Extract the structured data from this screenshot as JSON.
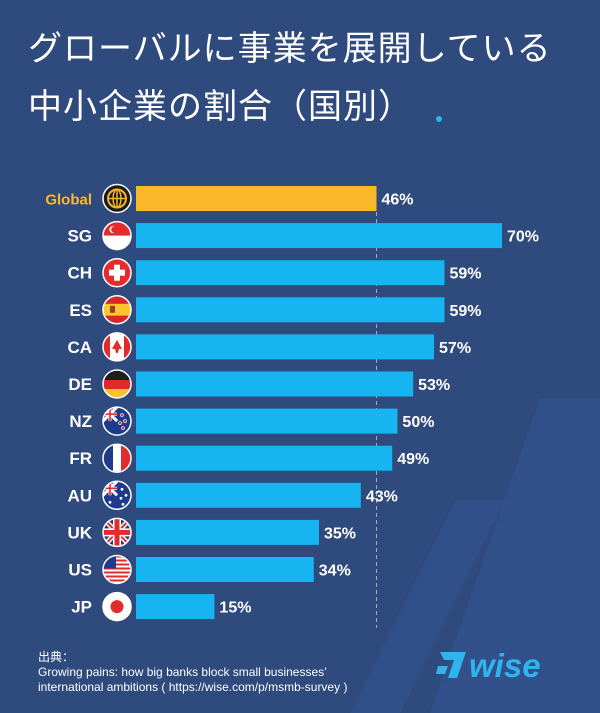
{
  "title_lines": [
    "グローバルに事業を展開している",
    "中小企業の割合（国別）"
  ],
  "chart_data": {
    "type": "bar",
    "orientation": "horizontal",
    "categories": [
      "Global",
      "SG",
      "CH",
      "ES",
      "CA",
      "DE",
      "NZ",
      "FR",
      "AU",
      "UK",
      "US",
      "JP"
    ],
    "values": [
      46,
      70,
      59,
      59,
      57,
      53,
      50,
      49,
      43,
      35,
      34,
      15
    ],
    "value_labels": [
      "46%",
      "70%",
      "59%",
      "59%",
      "57%",
      "53%",
      "50%",
      "49%",
      "43%",
      "35%",
      "34%",
      "15%"
    ],
    "xlim": [
      0,
      70
    ],
    "reference_line": 46,
    "colors": {
      "global": "#fbb929",
      "country": "#16b4f0"
    },
    "flags": [
      "globe-icon",
      "singapore-flag-icon",
      "switzerland-flag-icon",
      "spain-flag-icon",
      "canada-flag-icon",
      "germany-flag-icon",
      "new-zealand-flag-icon",
      "france-flag-icon",
      "australia-flag-icon",
      "uk-flag-icon",
      "us-flag-icon",
      "japan-flag-icon"
    ]
  },
  "source": {
    "label": "出典：",
    "line1": "Growing pains: how big banks block small businesses’",
    "line2": "international ambitions ( https://wise.com/p/msmb-survey )"
  },
  "logo": {
    "text": "WISE",
    "color": "#2fb4ee"
  },
  "colors": {
    "background": "#2f4a7d",
    "text": "#ffffff",
    "accent": "#16b4f0"
  }
}
